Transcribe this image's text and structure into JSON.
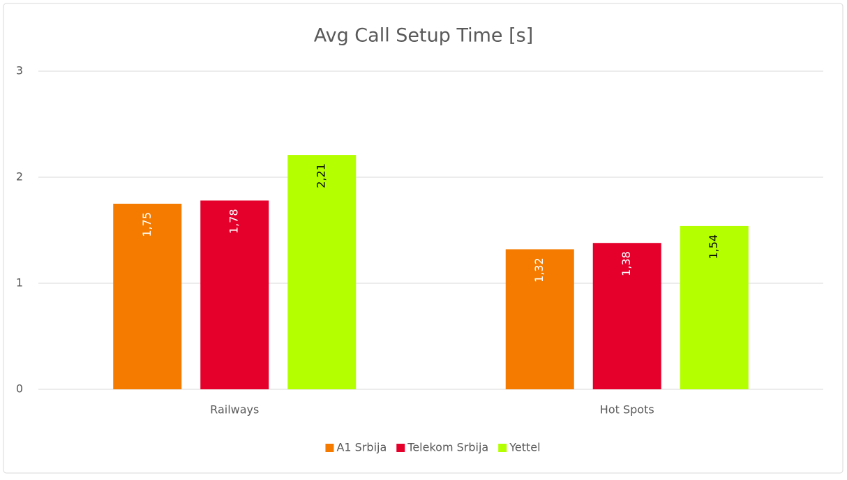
{
  "chart_data": {
    "type": "bar",
    "title": "Avg Call Setup Time [s]",
    "categories": [
      "Railways",
      "Hot Spots"
    ],
    "series": [
      {
        "name": "A1 Srbija",
        "color": "#f47b00",
        "values": [
          1.75,
          1.32
        ],
        "value_labels": [
          "1,75",
          "1,32"
        ]
      },
      {
        "name": "Telekom Srbija",
        "color": "#e4002b",
        "values": [
          1.78,
          1.38
        ],
        "value_labels": [
          "1,78",
          "1,38"
        ]
      },
      {
        "name": "Yettel",
        "color": "#b4ff00",
        "values": [
          2.21,
          1.54
        ],
        "value_labels": [
          "2,21",
          "1,54"
        ]
      }
    ],
    "ylim": [
      0,
      3
    ],
    "yticks": [
      0,
      1,
      2,
      3
    ],
    "grid": true,
    "legend": "bottom"
  }
}
